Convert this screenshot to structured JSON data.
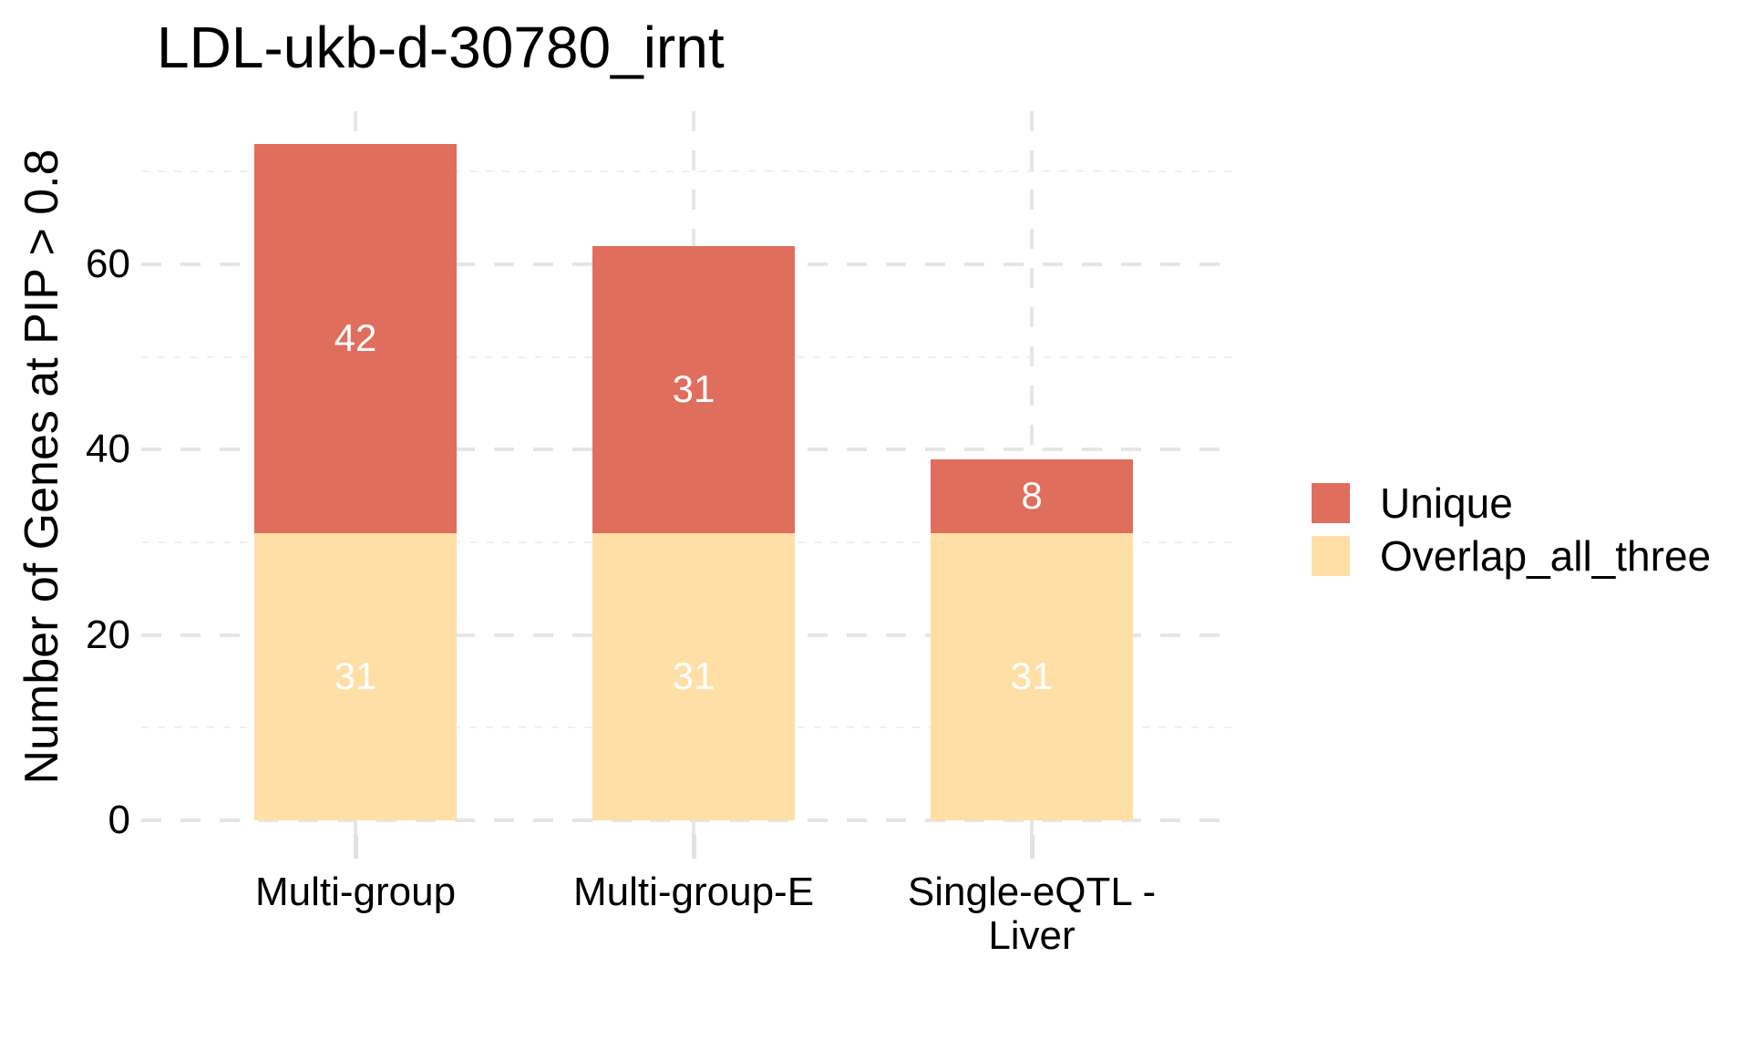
{
  "chart_data": {
    "type": "bar",
    "stacked": true,
    "title": "LDL-ukb-d-30780_irnt",
    "xlabel": "",
    "ylabel": "Number of Genes at PIP > 0.8",
    "categories": [
      "Multi-group",
      "Multi-group-E",
      "Single-eQTL -\nLiver"
    ],
    "series": [
      {
        "name": "Overlap_all_three",
        "color": "#FFDFA6",
        "values": [
          31,
          31,
          31
        ]
      },
      {
        "name": "Unique",
        "color": "#E06E5C",
        "values": [
          42,
          31,
          8
        ]
      }
    ],
    "totals": [
      73,
      62,
      39
    ],
    "bar_value_labels": {
      "color": "#FFFFFF",
      "values_by_segment": [
        [
          31,
          42
        ],
        [
          31,
          31
        ],
        [
          31,
          8
        ]
      ]
    },
    "yticks": [
      0,
      20,
      40,
      60
    ],
    "yticks_minor": [
      10,
      30,
      50,
      70
    ],
    "ylim": [
      0,
      76.6
    ],
    "grid": "dashed",
    "grid_major_color": "#E6E6E6",
    "grid_minor_color": "#F0F0F0",
    "legend_position": "right"
  },
  "legend": {
    "items": [
      {
        "label": "Unique",
        "color": "#E06E5C"
      },
      {
        "label": "Overlap_all_three",
        "color": "#FFDFA6"
      }
    ]
  }
}
